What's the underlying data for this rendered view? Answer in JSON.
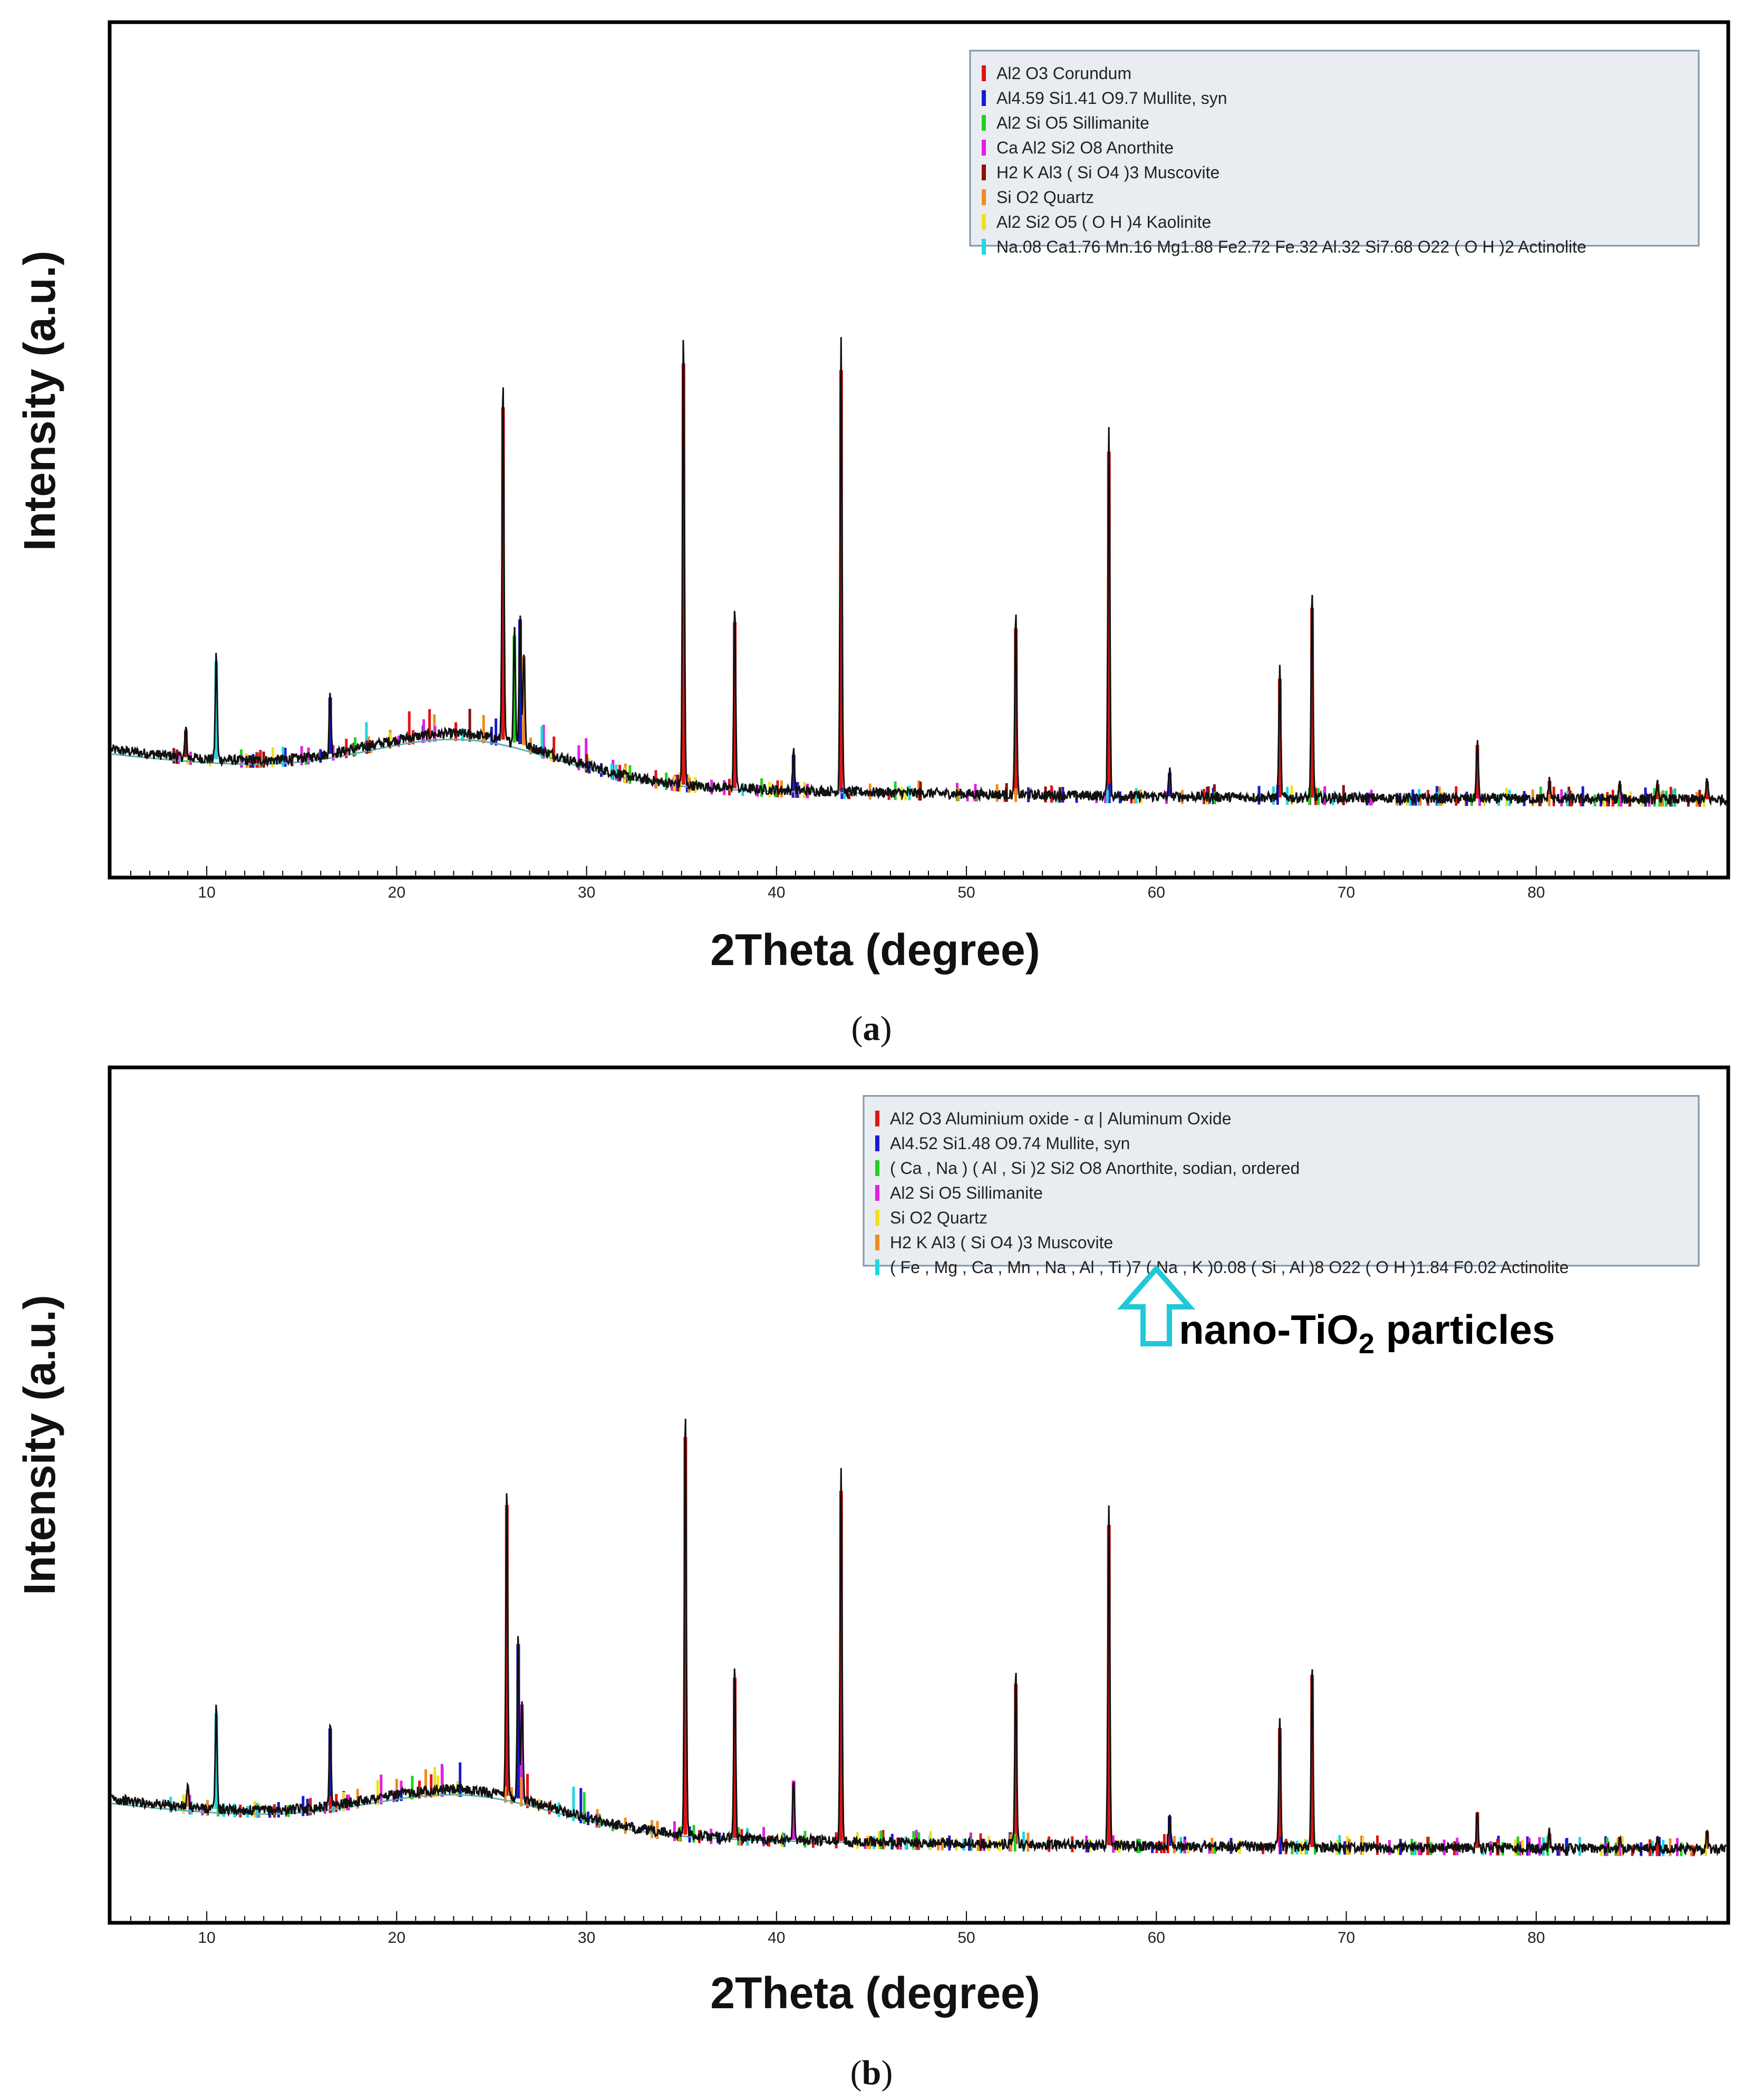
{
  "figure": {
    "caption_a": "(a)",
    "caption_b": "(b)",
    "caption_a_letter": "a",
    "caption_b_letter": "b"
  },
  "chart_data": [
    {
      "type": "line",
      "panel": "a",
      "title": "",
      "xlabel": "2Theta (degree)",
      "ylabel": "Intensity (a.u.)",
      "xlim": [
        5,
        90
      ],
      "ylim": [
        0,
        100
      ],
      "x_ticks": [
        10,
        20,
        30,
        40,
        50,
        60,
        70,
        80
      ],
      "legend_position": "top-right",
      "legend": [
        {
          "name": "Al2 O3 Corundum",
          "color": "#e01414"
        },
        {
          "name": "Al4.59 Si1.41 O9.7 Mullite, syn",
          "color": "#1a1ad0"
        },
        {
          "name": "Al2 Si O5 Sillimanite",
          "color": "#22d022"
        },
        {
          "name": "Ca Al2 Si2 O8 Anorthite",
          "color": "#e020e0"
        },
        {
          "name": "H2 K Al3 ( Si O4 )3 Muscovite",
          "color": "#8b1010"
        },
        {
          "name": "Si O2 Quartz",
          "color": "#f08c1e"
        },
        {
          "name": "Al2 Si2 O5 ( O H )4 Kaolinite",
          "color": "#f0e020"
        },
        {
          "name": "Na.08 Ca1.76 Mn.16 Mg1.88 Fe2.72 Fe.32 Al.32 Si7.68 O22 ( O H )2 Actinolite",
          "color": "#20d8e0"
        }
      ],
      "hump": {
        "center": 23.5,
        "height": 7,
        "width": 7
      },
      "peaks": [
        {
          "x": 8.9,
          "h": 4.5,
          "phase": 4
        },
        {
          "x": 10.5,
          "h": 16.5,
          "phase": 7
        },
        {
          "x": 16.5,
          "h": 9.5,
          "phase": 1
        },
        {
          "x": 25.6,
          "h": 56,
          "phase": 0
        },
        {
          "x": 26.2,
          "h": 18,
          "phase": 2
        },
        {
          "x": 26.5,
          "h": 21,
          "phase": 1
        },
        {
          "x": 26.7,
          "h": 15,
          "phase": 5
        },
        {
          "x": 35.1,
          "h": 71,
          "phase": 0
        },
        {
          "x": 37.8,
          "h": 28,
          "phase": 0
        },
        {
          "x": 40.9,
          "h": 6,
          "phase": 1
        },
        {
          "x": 43.4,
          "h": 71,
          "phase": 0
        },
        {
          "x": 52.6,
          "h": 28,
          "phase": 0
        },
        {
          "x": 57.5,
          "h": 58,
          "phase": 0
        },
        {
          "x": 60.7,
          "h": 4,
          "phase": 1
        },
        {
          "x": 66.5,
          "h": 20,
          "phase": 0
        },
        {
          "x": 68.2,
          "h": 32,
          "phase": 0
        },
        {
          "x": 76.9,
          "h": 9,
          "phase": 0
        },
        {
          "x": 80.7,
          "h": 3,
          "phase": 0
        },
        {
          "x": 84.4,
          "h": 2.5,
          "phase": 0
        },
        {
          "x": 86.4,
          "h": 2.5,
          "phase": 0
        },
        {
          "x": 89.0,
          "h": 3,
          "phase": 0
        }
      ]
    },
    {
      "type": "line",
      "panel": "b",
      "title": "",
      "xlabel": "2Theta (degree)",
      "ylabel": "Intensity (a.u.)",
      "xlim": [
        5,
        90
      ],
      "ylim": [
        0,
        100
      ],
      "x_ticks": [
        10,
        20,
        30,
        40,
        50,
        60,
        70,
        80
      ],
      "legend_position": "top-right",
      "legend": [
        {
          "name": "Al2 O3 Aluminium oxide - α | Aluminum Oxide",
          "color": "#e01414"
        },
        {
          "name": "Al4.52 Si1.48 O9.74 Mullite, syn",
          "color": "#1a1ad0"
        },
        {
          "name": "( Ca , Na ) ( Al , Si )2 Si2 O8 Anorthite, sodian, ordered",
          "color": "#22d022"
        },
        {
          "name": "Al2 Si O5 Sillimanite",
          "color": "#e020e0"
        },
        {
          "name": "Si O2 Quartz",
          "color": "#f0e020"
        },
        {
          "name": "H2 K Al3 ( Si O4 )3 Muscovite",
          "color": "#f08c1e"
        },
        {
          "name": "( Fe , Mg , Ca , Mn , Na , Al , Ti )7 ( Na , K )0.08 ( Si , Al )8 O22 ( O H )1.84 F0.02 Actinolite",
          "color": "#20d8e0"
        }
      ],
      "annotation": "nano-TiO",
      "annotation_sub": "2",
      "annotation_tail": " particles",
      "hump": {
        "center": 23.5,
        "height": 6,
        "width": 7
      },
      "peaks": [
        {
          "x": 9.0,
          "h": 3,
          "phase": 5
        },
        {
          "x": 10.5,
          "h": 16,
          "phase": 6
        },
        {
          "x": 16.5,
          "h": 13,
          "phase": 1
        },
        {
          "x": 25.8,
          "h": 49,
          "phase": 0
        },
        {
          "x": 26.4,
          "h": 26,
          "phase": 1
        },
        {
          "x": 26.6,
          "h": 16,
          "phase": 3
        },
        {
          "x": 35.2,
          "h": 67,
          "phase": 0
        },
        {
          "x": 37.8,
          "h": 27,
          "phase": 0
        },
        {
          "x": 40.9,
          "h": 10,
          "phase": 3
        },
        {
          "x": 43.4,
          "h": 59,
          "phase": 0
        },
        {
          "x": 52.6,
          "h": 27,
          "phase": 0
        },
        {
          "x": 57.5,
          "h": 54,
          "phase": 0
        },
        {
          "x": 60.7,
          "h": 5,
          "phase": 1
        },
        {
          "x": 66.5,
          "h": 20,
          "phase": 0
        },
        {
          "x": 68.2,
          "h": 29,
          "phase": 0
        },
        {
          "x": 76.9,
          "h": 6,
          "phase": 0
        },
        {
          "x": 80.7,
          "h": 2.5,
          "phase": 0
        },
        {
          "x": 84.4,
          "h": 2,
          "phase": 0
        },
        {
          "x": 86.4,
          "h": 2,
          "phase": 0
        },
        {
          "x": 89.0,
          "h": 3,
          "phase": 0
        }
      ]
    }
  ]
}
